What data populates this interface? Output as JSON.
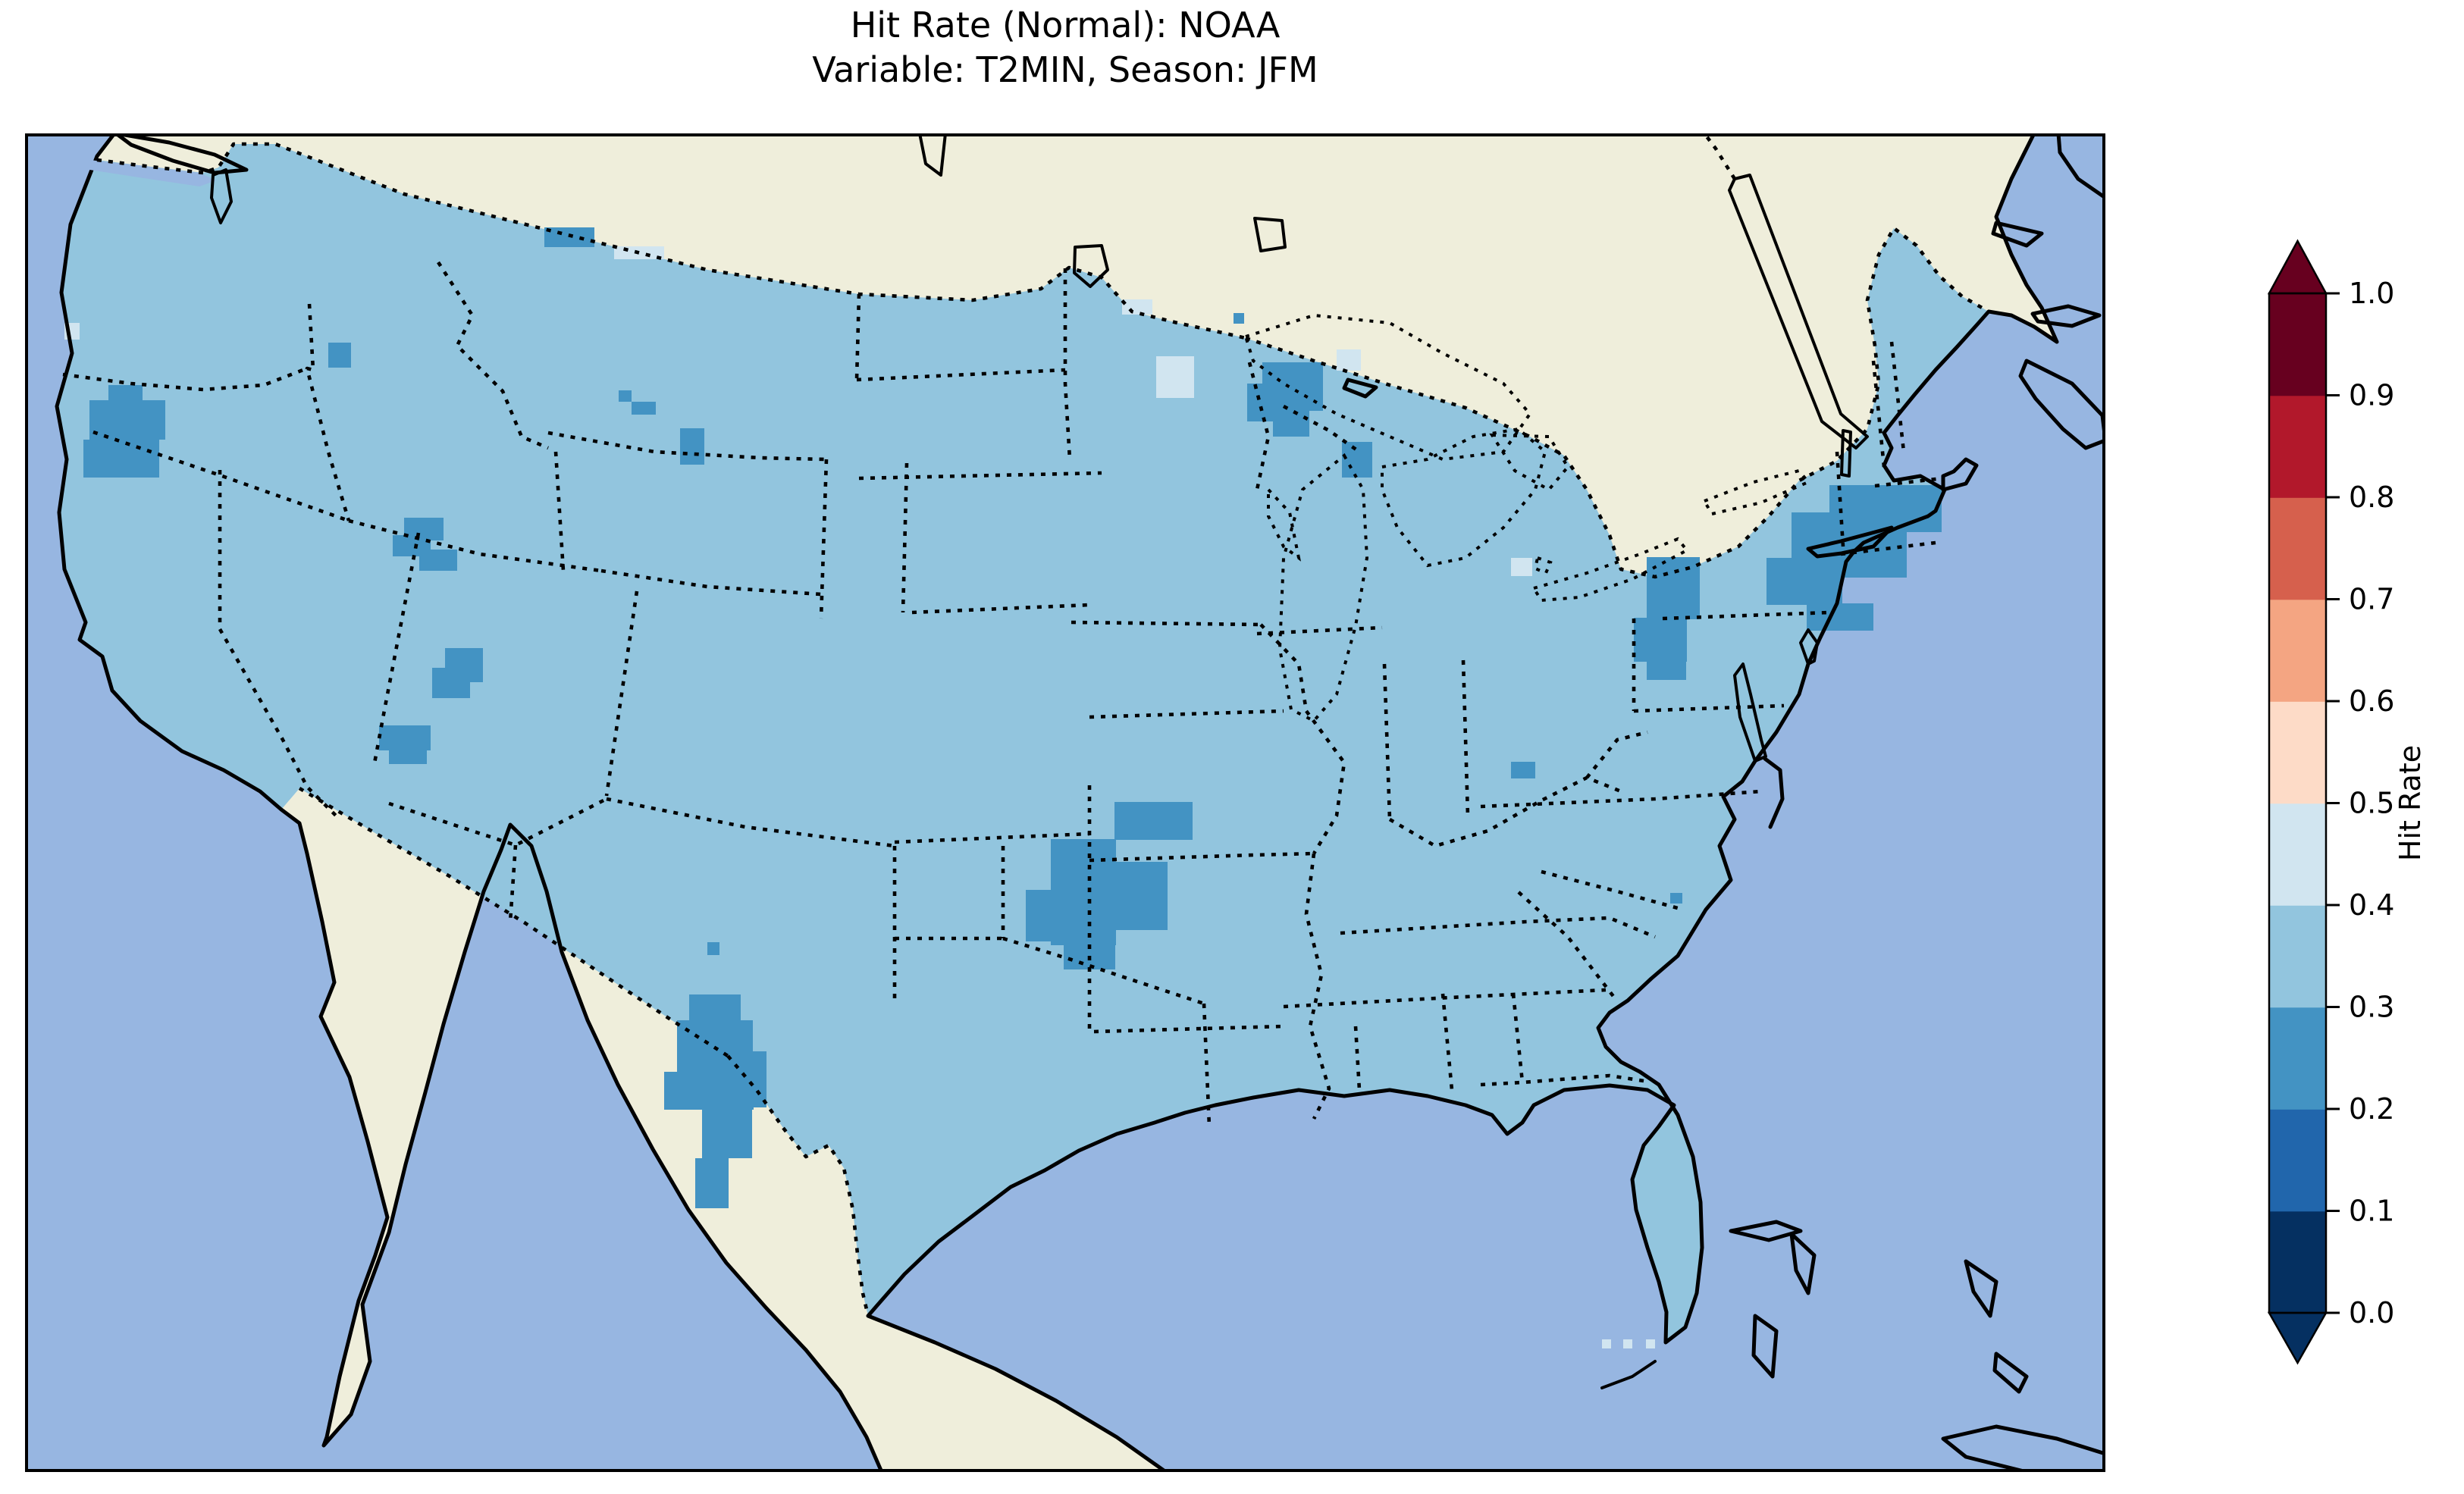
{
  "title": {
    "line1": "Hit Rate (Normal): NOAA",
    "line2": "Variable: T2MIN, Season: JFM"
  },
  "colorbar": {
    "label": "Hit Rate",
    "extend": "both",
    "ticks": [
      "0.0",
      "0.1",
      "0.2",
      "0.3",
      "0.4",
      "0.5",
      "0.6",
      "0.7",
      "0.8",
      "0.9",
      "1.0"
    ],
    "bins": [
      {
        "range": "0.0-0.1",
        "color": "#053061"
      },
      {
        "range": "0.1-0.2",
        "color": "#2166ac"
      },
      {
        "range": "0.2-0.3",
        "color": "#4393c3"
      },
      {
        "range": "0.3-0.4",
        "color": "#92c5de"
      },
      {
        "range": "0.4-0.5",
        "color": "#d1e5f0"
      },
      {
        "range": "0.5-0.6",
        "color": "#fddbc7"
      },
      {
        "range": "0.6-0.7",
        "color": "#f4a582"
      },
      {
        "range": "0.7-0.8",
        "color": "#d6604d"
      },
      {
        "range": "0.8-0.9",
        "color": "#b2182b"
      },
      {
        "range": "0.9-1.0",
        "color": "#67001f"
      }
    ]
  },
  "map": {
    "colors": {
      "ocean": "#97b6e1",
      "land": "#efeedb",
      "us_fill_03_04": "#92c5de",
      "cell_low_02_03": "#4393c3",
      "cell_mid_04_05": "#d1e5f0",
      "coastline": "#000000"
    },
    "cells": {
      "low_02_03": [
        [
          685,
          124,
          66,
          26
        ],
        [
          400,
          276,
          30,
          33
        ],
        [
          85,
          352,
          100,
          52
        ],
        [
          77,
          404,
          100,
          50
        ],
        [
          110,
          332,
          45,
          22
        ],
        [
          783,
          339,
          17,
          15
        ],
        [
          800,
          354,
          32,
          17
        ],
        [
          864,
          389,
          32,
          48
        ],
        [
          500,
          507,
          52,
          30
        ],
        [
          485,
          530,
          50,
          28
        ],
        [
          520,
          549,
          50,
          28
        ],
        [
          554,
          679,
          50,
          33
        ],
        [
          537,
          705,
          50,
          40
        ],
        [
          570,
          700,
          34,
          24
        ],
        [
          467,
          781,
          68,
          33
        ],
        [
          480,
          814,
          50,
          18
        ],
        [
          900,
          1067,
          16,
          17
        ],
        [
          876,
          1136,
          68,
          36
        ],
        [
          860,
          1170,
          100,
          68
        ],
        [
          843,
          1238,
          118,
          50
        ],
        [
          893,
          1288,
          66,
          64
        ],
        [
          884,
          1352,
          44,
          66
        ],
        [
          950,
          1211,
          28,
          74
        ],
        [
          1437,
          882,
          103,
          50
        ],
        [
          1409,
          961,
          98,
          90
        ],
        [
          1353,
          931,
          86,
          140
        ],
        [
          1320,
          998,
          34,
          68
        ],
        [
          1370,
          1069,
          68,
          34
        ],
        [
          1632,
          302,
          80,
          64
        ],
        [
          1612,
          330,
          62,
          50
        ],
        [
          1646,
          366,
          48,
          34
        ],
        [
          1594,
          237,
          14,
          14
        ],
        [
          1737,
          407,
          40,
          47
        ],
        [
          2139,
          559,
          70,
          82
        ],
        [
          2122,
          639,
          70,
          58
        ],
        [
          2139,
          697,
          52,
          24
        ],
        [
          2380,
          464,
          148,
          62
        ],
        [
          2330,
          500,
          152,
          86
        ],
        [
          2297,
          560,
          100,
          62
        ],
        [
          2350,
          620,
          88,
          36
        ],
        [
          1960,
          829,
          32,
          22
        ],
        [
          2170,
          1002,
          16,
          14
        ]
      ],
      "mid_04_05": [
        [
          1492,
          294,
          50,
          55
        ],
        [
          1447,
          219,
          40,
          20
        ],
        [
          1730,
          285,
          32,
          28
        ],
        [
          2437,
          521,
          28,
          26
        ],
        [
          2080,
          1591,
          12,
          12
        ],
        [
          2108,
          1591,
          12,
          12
        ],
        [
          2138,
          1591,
          12,
          12
        ],
        [
          52,
          250,
          20,
          22
        ],
        [
          777,
          149,
          66,
          17
        ],
        [
          1960,
          560,
          28,
          24
        ]
      ]
    },
    "regions_low_hit": [
      "Pacific Northwest border",
      "northern California coast",
      "eastern Oregon",
      "western Montana",
      "northern and central Utah",
      "Utah-Arizona border",
      "west Texas",
      "Kansas-Oklahoma-Missouri-Arkansas corner",
      "northeast Minnesota / Lake Superior",
      "central Michigan",
      "central Pennsylvania",
      "southern New England and NYC area",
      "West Virginia cell",
      "South Carolina coast cell"
    ]
  },
  "chart_data": {
    "type": "heatmap",
    "title": "Hit Rate (Normal): NOAA — Variable: T2MIN, Season: JFM",
    "geography": "Continental United States (gridded verification map, cartopy style)",
    "colormap": "RdBu discrete, 10 bins from 0.0 to 1.0, extend arrows both ends",
    "colorbar_label": "Hit Rate",
    "colorbar_ticks": [
      0.0,
      0.1,
      0.2,
      0.3,
      0.4,
      0.5,
      0.6,
      0.7,
      0.8,
      0.9,
      1.0
    ],
    "bin_colors": [
      "#053061",
      "#2166ac",
      "#4393c3",
      "#92c5de",
      "#d1e5f0",
      "#fddbc7",
      "#f4a582",
      "#d6604d",
      "#b2182b",
      "#67001f"
    ],
    "dominant_value_bin": "0.3-0.4 (light blue) over most of CONUS",
    "secondary_bins": {
      "0.2-0.3": "patches over NorCal coast, Utah, west Texas, OK/KS/MO/AR corner, NE Minnesota, central PA, southern New England/NYC, central Michigan, Montana cells",
      "0.4-0.5": "scattered cells near Lake Superior, Florida Keys, Long Island, borders"
    },
    "base_map": {
      "ocean": "#97b6e1",
      "non_us_land": "#efeedb",
      "state_borders": "dotted black",
      "coastlines": "solid black"
    }
  }
}
